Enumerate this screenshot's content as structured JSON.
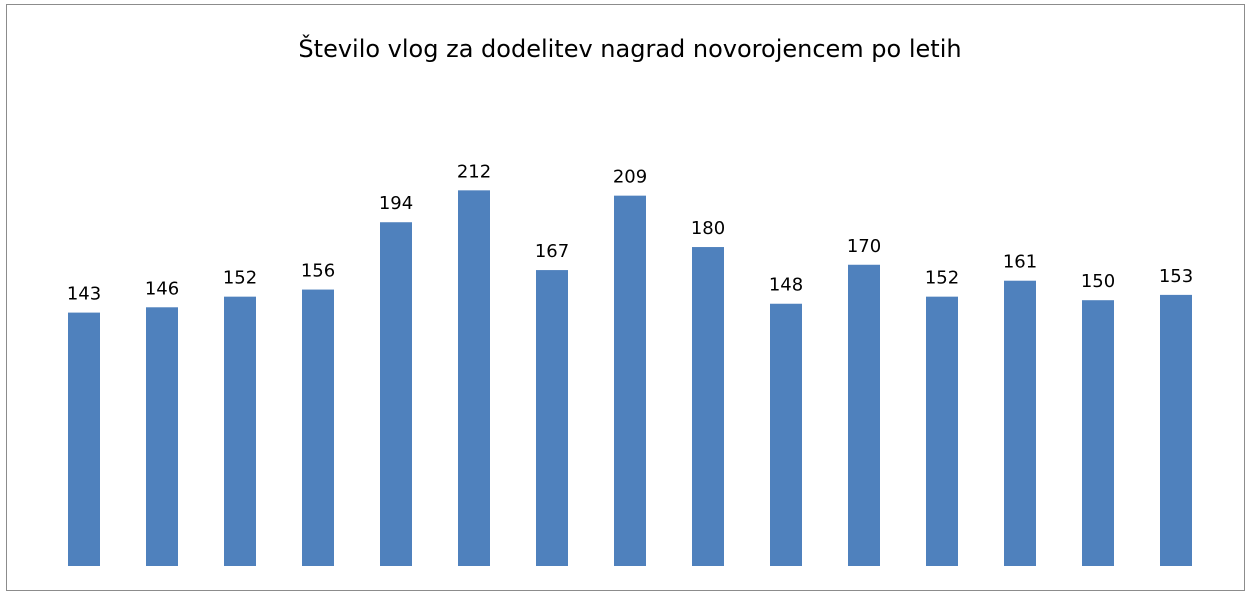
{
  "chart_data": {
    "type": "bar",
    "title": "Število vlog za dodelitev nagrad novorojencem po letih",
    "categories": [
      null,
      null,
      null,
      null,
      null,
      null,
      null,
      null,
      null,
      null,
      null,
      null,
      null,
      null,
      null
    ],
    "values": [
      143,
      146,
      152,
      156,
      194,
      212,
      167,
      209,
      180,
      148,
      170,
      152,
      161,
      150,
      153
    ],
    "color": "#4f81bd",
    "ylim": [
      0,
      250
    ],
    "data_labels": true
  }
}
